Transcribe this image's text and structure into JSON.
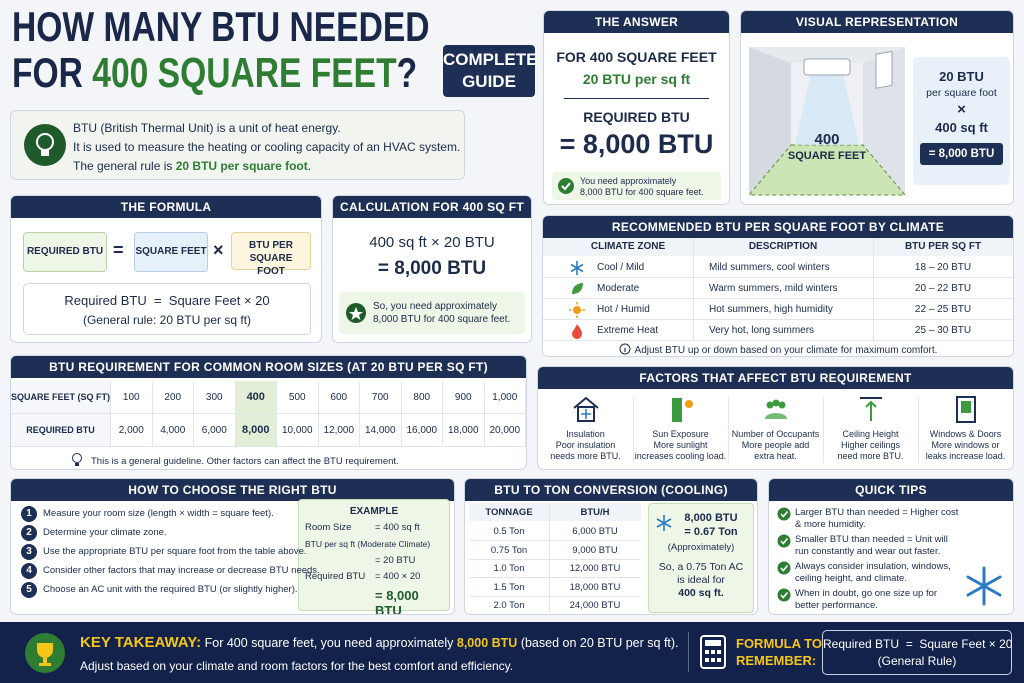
{
  "title": {
    "line1": "HOW MANY BTU NEEDED",
    "line2_prefix": "FOR",
    "line2_highlight": "400 SQUARE FEET",
    "line2_suffix": "?"
  },
  "badge": [
    "COMPLETE",
    "GUIDE"
  ],
  "intro": {
    "line1": "BTU (British Thermal Unit) is a unit of heat energy.",
    "line2": "It is used to measure the heating or cooling capacity of an HVAC system.",
    "line3_prefix": "The general rule is",
    "line3_highlight": "20 BTU per square foot",
    "line3_suffix": "."
  },
  "answer": {
    "header": "THE ANSWER",
    "area": "FOR 400 SQUARE FEET",
    "rate": "20 BTU per sq ft",
    "label": "REQUIRED BTU",
    "result": "= 8,000 BTU",
    "note": [
      "You need approximately",
      "8,000 BTU for 400 square feet."
    ]
  },
  "visual": {
    "header": "VISUAL REPRESENTATION",
    "room_number": "400",
    "room_unit": "SQUARE FEET",
    "rate": "20 BTU",
    "rate_unit": "per square foot",
    "times": "×",
    "area": "400 sq ft",
    "result": "= 8,000 BTU"
  },
  "formula": {
    "header": "THE FORMULA",
    "box1": "REQUIRED BTU",
    "equals": "=",
    "box2": "SQUARE FEET",
    "times": "×",
    "box3": "BTU PER SQUARE FOOT",
    "line1": "Required BTU  =  Square Feet × 20",
    "line2": "(General rule: 20 BTU per sq ft)"
  },
  "calculation": {
    "header": "CALCULATION FOR 400 SQ FT",
    "line1": "400 sq ft × 20 BTU",
    "line2": "= 8,000 BTU",
    "note": [
      "So, you need approximately",
      "8,000 BTU for 400 square feet."
    ]
  },
  "climate": {
    "header": "RECOMMENDED BTU PER SQUARE FOOT BY CLIMATE",
    "columns": [
      "CLIMATE ZONE",
      "DESCRIPTION",
      "BTU PER SQ FT"
    ],
    "rows": [
      {
        "zone": "Cool / Mild",
        "description": "Mild summers, cool winters",
        "btu": "18 – 20 BTU"
      },
      {
        "zone": "Moderate",
        "description": "Warm summers, mild winters",
        "btu": "20 – 22 BTU"
      },
      {
        "zone": "Hot / Humid",
        "description": "Hot summers, high humidity",
        "btu": "22 – 25 BTU"
      },
      {
        "zone": "Extreme Heat",
        "description": "Very hot, long summers",
        "btu": "25 – 30 BTU"
      }
    ],
    "note": "Adjust BTU up or down based on your climate for maximum comfort."
  },
  "room_sizes": {
    "header": "BTU REQUIREMENT FOR COMMON ROOM SIZES (AT 20 BTU PER SQ FT)",
    "row_labels": [
      "SQUARE FEET (SQ FT)",
      "REQUIRED BTU"
    ],
    "square_feet": [
      "100",
      "200",
      "300",
      "400",
      "500",
      "600",
      "700",
      "800",
      "900",
      "1,000"
    ],
    "required_btu": [
      "2,000",
      "4,000",
      "6,000",
      "8,000",
      "10,000",
      "12,000",
      "14,000",
      "16,000",
      "18,000",
      "20,000"
    ],
    "note": "This is a general guideline. Other factors can affect the BTU requirement."
  },
  "factors": {
    "header": "FACTORS THAT AFFECT BTU REQUIREMENT",
    "items": [
      {
        "title": "Insulation",
        "lines": [
          "Poor insulation",
          "needs more BTU."
        ]
      },
      {
        "title": "Sun Exposure",
        "lines": [
          "More sunlight",
          "increases cooling load."
        ]
      },
      {
        "title": "Number of Occupants",
        "lines": [
          "More people add",
          "extra heat."
        ]
      },
      {
        "title": "Ceiling Height",
        "lines": [
          "Higher ceilings",
          "need more BTU."
        ]
      },
      {
        "title": "Windows & Doors",
        "lines": [
          "More windows or",
          "leaks increase load."
        ]
      }
    ]
  },
  "choose": {
    "header": "HOW TO CHOOSE THE RIGHT BTU",
    "steps": [
      {
        "number": "1",
        "text": "Measure your room size (length × width = square feet)."
      },
      {
        "number": "2",
        "text": "Determine your climate zone."
      },
      {
        "number": "3",
        "text": "Use the appropriate BTU per square foot from the table above."
      },
      {
        "number": "4",
        "text": "Consider other factors that may increase or decrease BTU needs."
      },
      {
        "number": "5",
        "text": "Choose an AC unit with the required BTU (or slightly higher)."
      }
    ],
    "example": {
      "title": "EXAMPLE",
      "room_label": "Room Size",
      "room_value": "= 400 sq ft",
      "rate_label": "BTU per sq ft (Moderate Climate)",
      "rate_value": "= 20 BTU",
      "required_label": "Required BTU",
      "required_value": "= 400 × 20",
      "result": "= 8,000 BTU"
    }
  },
  "tons": {
    "header": "BTU TO TON CONVERSION (COOLING)",
    "columns": [
      "TONNAGE",
      "BTU/H"
    ],
    "rows": [
      [
        "0.5 Ton",
        "6,000 BTU"
      ],
      [
        "0.75 Ton",
        "9,000 BTU"
      ],
      [
        "1.0 Ton",
        "12,000 BTU"
      ],
      [
        "1.5 Ton",
        "18,000 BTU"
      ],
      [
        "2.0 Ton",
        "24,000 BTU"
      ]
    ],
    "side": {
      "btu": "8,000 BTU",
      "ton": "= 0.67 Ton",
      "approx": "(Approximately)",
      "lines": [
        "So, a 0.75 Ton AC",
        "is ideal for",
        "400 sq ft."
      ]
    }
  },
  "tips": {
    "header": "QUICK TIPS",
    "items": [
      [
        "Larger BTU than needed = Higher cost",
        "& more humidity."
      ],
      [
        "Smaller BTU than needed = Unit will",
        "run constantly and wear out faster."
      ],
      [
        "Always consider insulation, windows,",
        "ceiling height, and climate."
      ],
      [
        "When in doubt, go one size up for",
        "better performance."
      ]
    ]
  },
  "footer": {
    "key_label": "KEY TAKEAWAY:",
    "line1_prefix": "For 400 square feet, you need approximately",
    "line1_highlight": "8,000 BTU",
    "line1_suffix": "(based on 20 BTU per sq ft).",
    "line2": "Adjust based on your climate and room factors for the best comfort and efficiency.",
    "formula_label": [
      "FORMULA TO",
      "REMEMBER:"
    ],
    "formula_box": [
      "Required BTU  =  Square Feet × 20",
      "(General Rule)"
    ]
  }
}
